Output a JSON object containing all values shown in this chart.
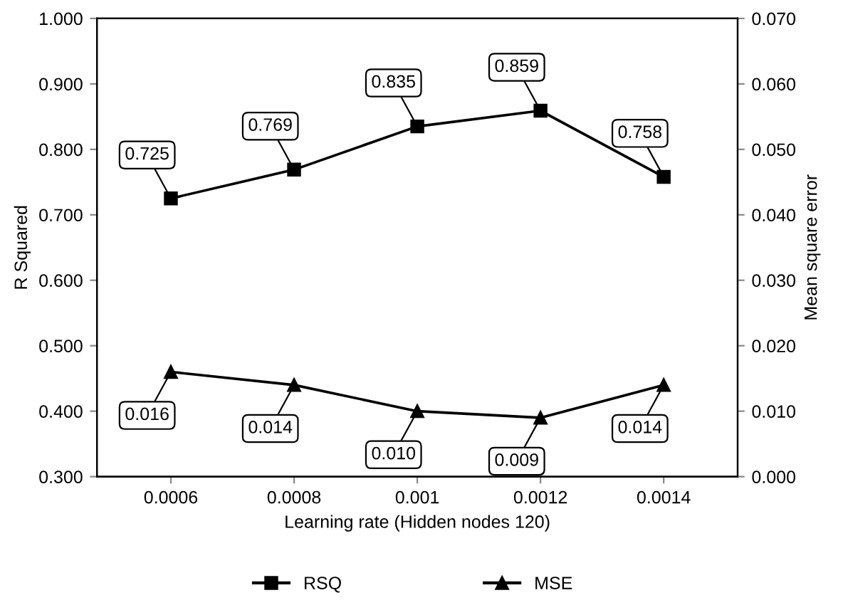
{
  "chart_data": {
    "type": "line",
    "xlabel": "Learning rate (Hidden nodes 120)",
    "ylabel": "R Squared",
    "y2label": "Mean square error",
    "categories": [
      "0.0006",
      "0.0008",
      "0.001",
      "0.0012",
      "0.0014"
    ],
    "series": [
      {
        "name": "RSQ",
        "color": "#000000",
        "marker": "square",
        "values": [
          0.725,
          0.769,
          0.835,
          0.859,
          0.758
        ],
        "value_labels": [
          "0.725",
          "0.769",
          "0.835",
          "0.859",
          "0.758"
        ]
      },
      {
        "name": "MSE",
        "color": "#000000",
        "marker": "triangle",
        "axis": "y2",
        "values": [
          0.016,
          0.014,
          0.01,
          0.009,
          0.014
        ],
        "value_labels": [
          "0.016",
          "0.014",
          "0.010",
          "0.009",
          "0.014"
        ]
      }
    ],
    "ylim": [
      0.3,
      1.0
    ],
    "yticks": [
      {
        "value": 0.3,
        "label": "0.300"
      },
      {
        "value": 0.4,
        "label": "0.400"
      },
      {
        "value": 0.5,
        "label": "0.500"
      },
      {
        "value": 0.6,
        "label": "0.600"
      },
      {
        "value": 0.7,
        "label": "0.700"
      },
      {
        "value": 0.8,
        "label": "0.800"
      },
      {
        "value": 0.9,
        "label": "0.900"
      },
      {
        "value": 1.0,
        "label": "1.000"
      }
    ],
    "y2lim": [
      0.0,
      0.07
    ],
    "y2ticks": [
      {
        "value": 0.0,
        "label": "0.000"
      },
      {
        "value": 0.01,
        "label": "0.010"
      },
      {
        "value": 0.02,
        "label": "0.020"
      },
      {
        "value": 0.03,
        "label": "0.030"
      },
      {
        "value": 0.04,
        "label": "0.040"
      },
      {
        "value": 0.05,
        "label": "0.050"
      },
      {
        "value": 0.06,
        "label": "0.060"
      },
      {
        "value": 0.07,
        "label": "0.070"
      }
    ],
    "grid": false,
    "legend": "bottom",
    "line_style": "solid"
  }
}
